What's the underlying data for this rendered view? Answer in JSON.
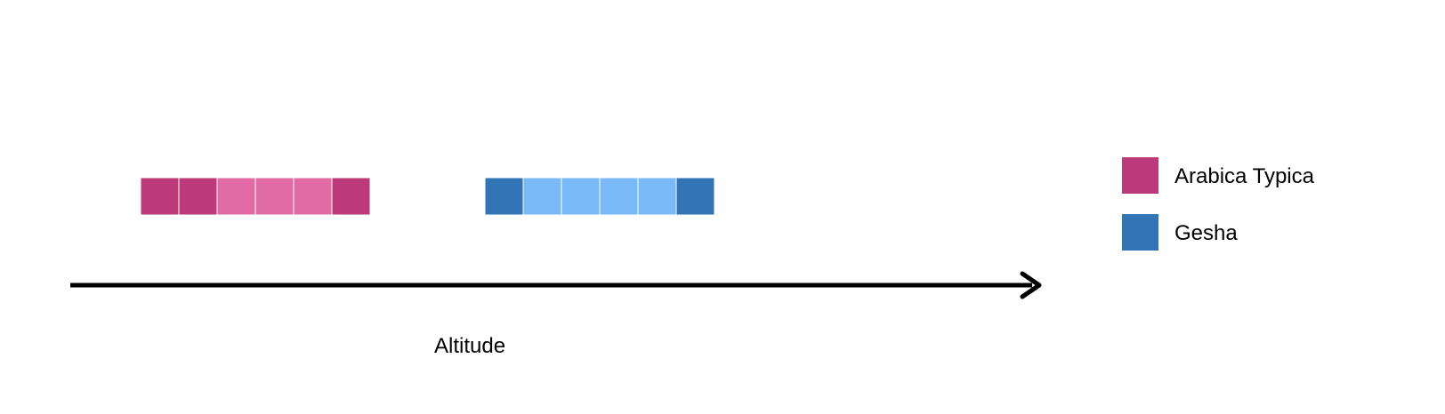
{
  "axis": {
    "label": "Altitude"
  },
  "groups": [
    {
      "name": "Arabica Typica",
      "cells": [
        "dark",
        "dark",
        "light",
        "light",
        "light",
        "dark"
      ],
      "colors": {
        "dark": "#BC3A79",
        "light": "#E06BA5"
      }
    },
    {
      "name": "Gesha",
      "cells": [
        "dark",
        "light",
        "light",
        "light",
        "light",
        "dark"
      ],
      "colors": {
        "dark": "#3175B6",
        "light": "#7AB9F7"
      }
    }
  ],
  "legend": {
    "items": [
      {
        "label": "Arabica Typica",
        "color": "#BC3A79"
      },
      {
        "label": "Gesha",
        "color": "#3175B6"
      }
    ]
  }
}
